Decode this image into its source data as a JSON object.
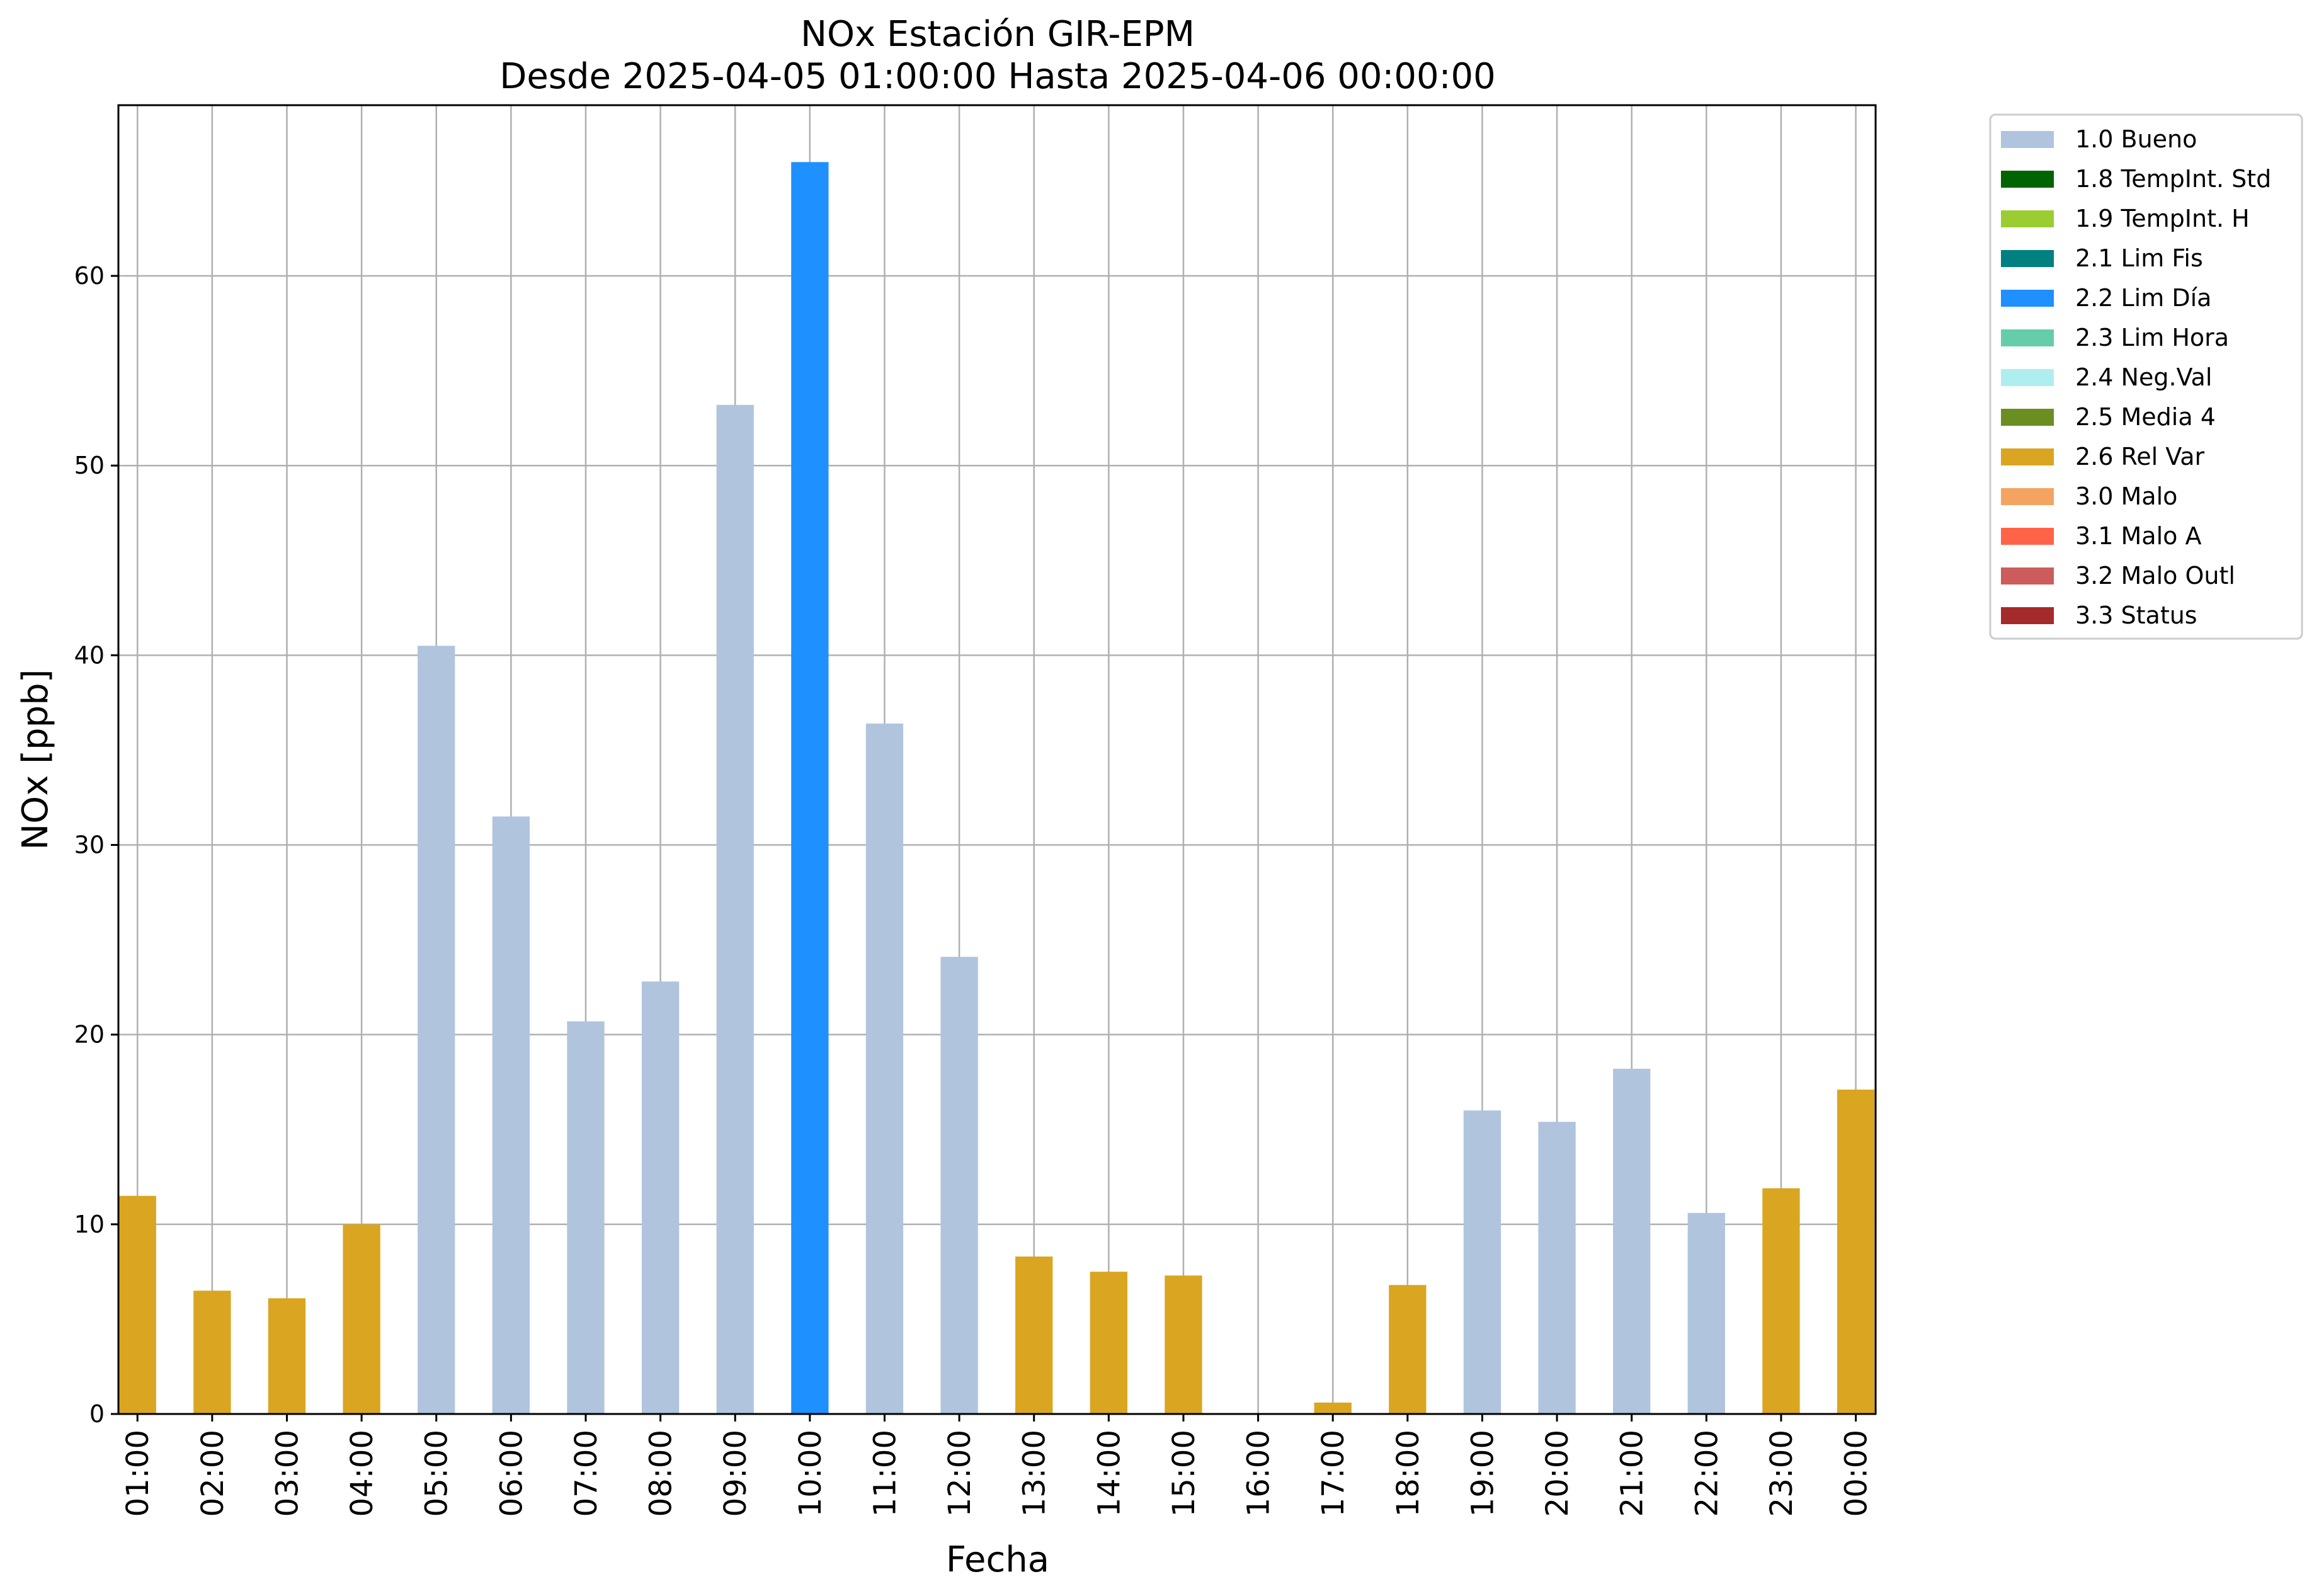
{
  "chart_data": {
    "type": "bar",
    "title": "NOx Estación GIR-EPM",
    "subtitle": "Desde 2025-04-05 01:00:00 Hasta 2025-04-06 00:00:00",
    "xlabel": "Fecha",
    "ylabel": "NOx [ppb]",
    "ylim": [
      0,
      69
    ],
    "yticks": [
      0,
      10,
      20,
      30,
      40,
      50,
      60
    ],
    "grid": true,
    "legend_position": "outside-top-right",
    "categories": [
      "01:00",
      "02:00",
      "03:00",
      "04:00",
      "05:00",
      "06:00",
      "07:00",
      "08:00",
      "09:00",
      "10:00",
      "11:00",
      "12:00",
      "13:00",
      "14:00",
      "15:00",
      "16:00",
      "17:00",
      "18:00",
      "19:00",
      "20:00",
      "21:00",
      "22:00",
      "23:00",
      "00:00"
    ],
    "values": [
      11.5,
      6.5,
      6.1,
      10.0,
      40.5,
      31.5,
      20.7,
      22.8,
      53.2,
      66.0,
      36.4,
      24.1,
      8.3,
      7.5,
      7.3,
      0.0,
      0.6,
      6.8,
      16.0,
      15.4,
      18.2,
      10.6,
      11.9,
      17.1
    ],
    "flags": [
      "2.6 Rel Var",
      "2.6 Rel Var",
      "2.6 Rel Var",
      "2.6 Rel Var",
      "1.0 Bueno",
      "1.0 Bueno",
      "1.0 Bueno",
      "1.0 Bueno",
      "1.0 Bueno",
      "2.2 Lim Día",
      "1.0 Bueno",
      "1.0 Bueno",
      "2.6 Rel Var",
      "2.6 Rel Var",
      "2.6 Rel Var",
      "2.6 Rel Var",
      "2.6 Rel Var",
      "2.6 Rel Var",
      "1.0 Bueno",
      "1.0 Bueno",
      "1.0 Bueno",
      "1.0 Bueno",
      "2.6 Rel Var",
      "2.6 Rel Var"
    ],
    "legend": [
      {
        "name": "1.0 Bueno",
        "color": "#b0c4de"
      },
      {
        "name": "1.8 TempInt. Std",
        "color": "#006400"
      },
      {
        "name": "1.9 TempInt. H",
        "color": "#9acd32"
      },
      {
        "name": "2.1 Lim Fis",
        "color": "#008080"
      },
      {
        "name": "2.2 Lim Día",
        "color": "#1e90ff"
      },
      {
        "name": "2.3 Lim Hora",
        "color": "#66cdaa"
      },
      {
        "name": "2.4 Neg.Val",
        "color": "#afeeee"
      },
      {
        "name": "2.5 Media 4",
        "color": "#6b8e23"
      },
      {
        "name": "2.6 Rel Var",
        "color": "#daa520"
      },
      {
        "name": "3.0 Malo",
        "color": "#f4a460"
      },
      {
        "name": "3.1 Malo A",
        "color": "#ff6347"
      },
      {
        "name": "3.2 Malo Outl",
        "color": "#cd5c5c"
      },
      {
        "name": "3.3 Status",
        "color": "#a52a2a"
      }
    ]
  }
}
